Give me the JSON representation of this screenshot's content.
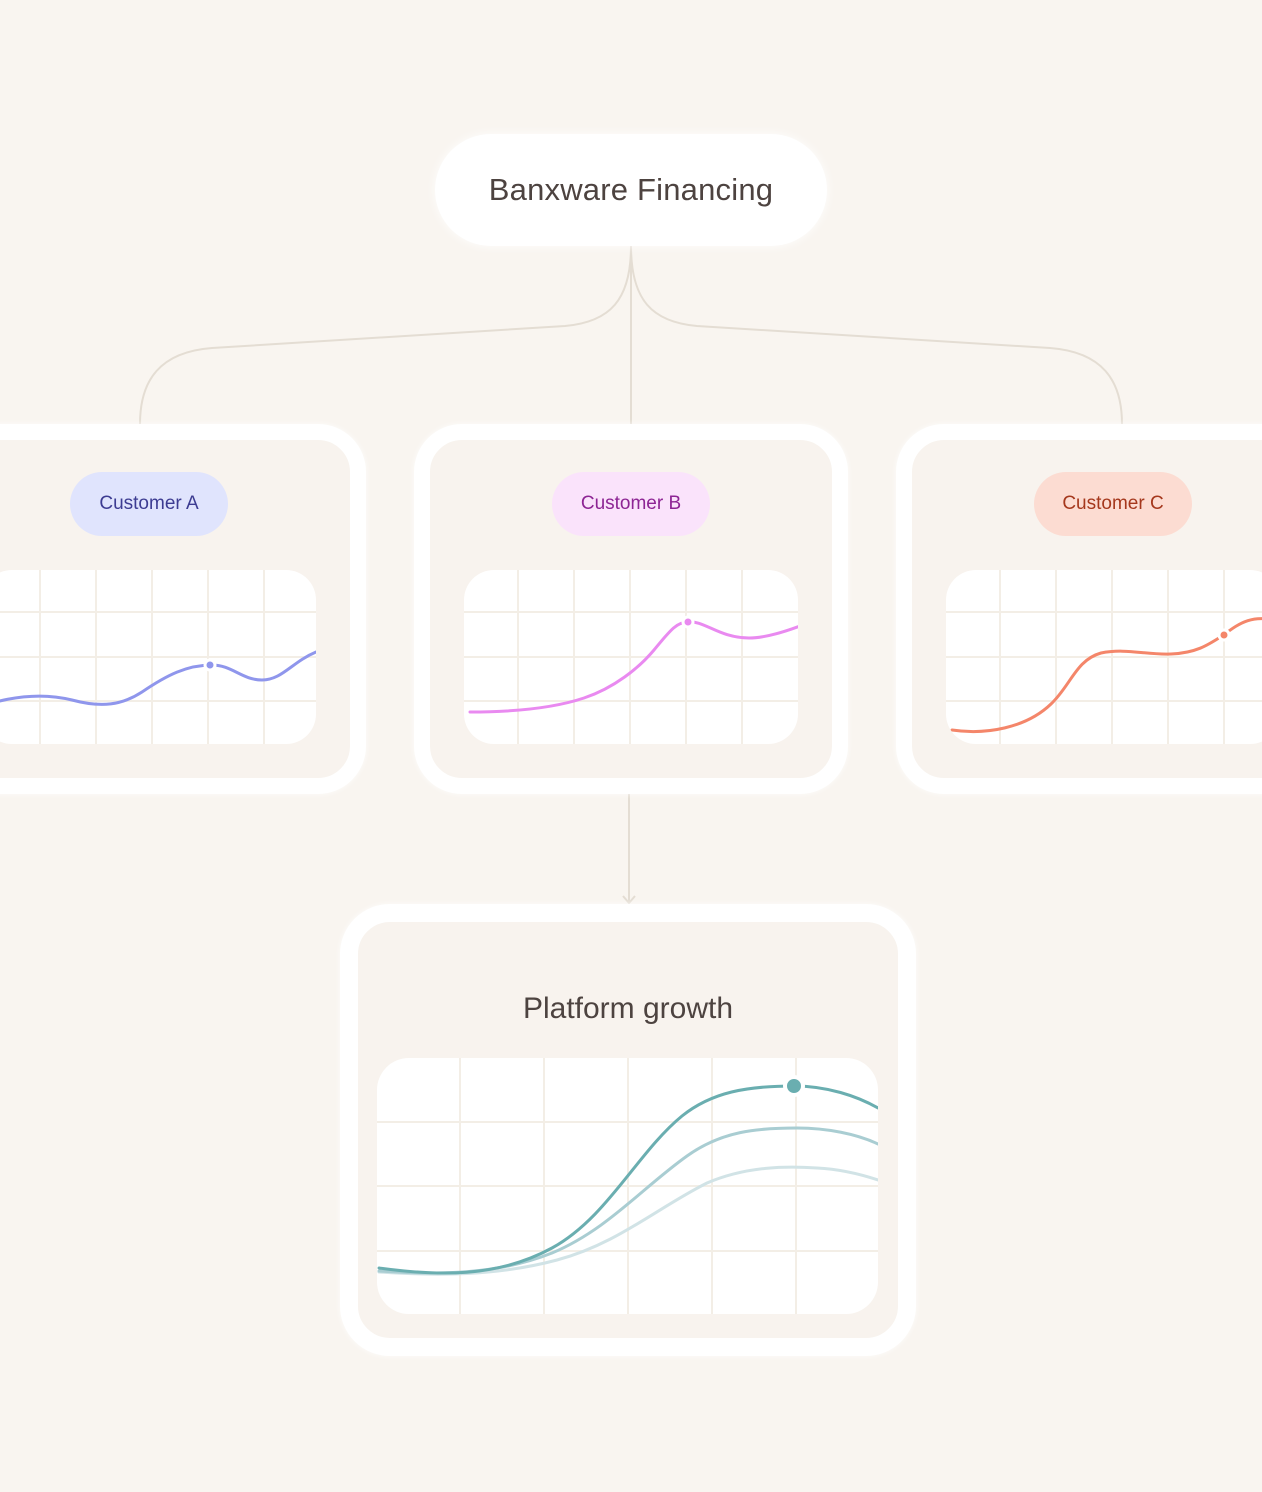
{
  "root": {
    "label": "Banxware Financing"
  },
  "customers": [
    {
      "label": "Customer A",
      "color": "#8f96ec",
      "badge_bg": "#e0e4fd",
      "badge_text": "#3d3c92"
    },
    {
      "label": "Customer B",
      "color": "#e98af0",
      "badge_bg": "#fae3fb",
      "badge_text": "#8d2594"
    },
    {
      "label": "Customer C",
      "color": "#f4866a",
      "badge_bg": "#fcdcd2",
      "badge_text": "#a5381d"
    }
  ],
  "platform": {
    "title": "Platform growth",
    "series_colors": [
      "#6aaeb0",
      "#a9cdd2",
      "#d1e3e6"
    ]
  },
  "colors": {
    "background": "#f9f5f0",
    "connector": "#e4ddd3",
    "grid": "#f3eee6"
  }
}
